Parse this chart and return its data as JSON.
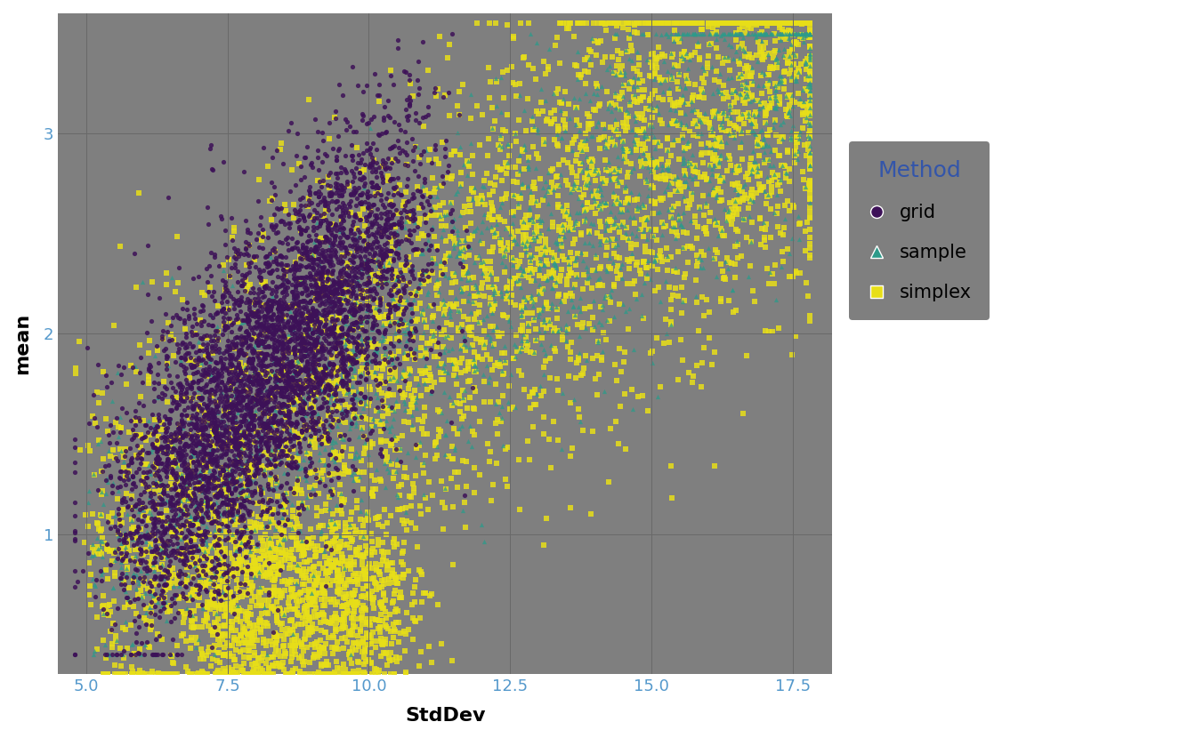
{
  "title": "",
  "xlabel": "StdDev",
  "ylabel": "mean",
  "xlim": [
    4.5,
    18.2
  ],
  "ylim": [
    0.3,
    3.6
  ],
  "xticks": [
    5.0,
    7.5,
    10.0,
    12.5,
    15.0,
    17.5
  ],
  "yticks": [
    1,
    2,
    3
  ],
  "background_color": "#7f7f7f",
  "grid_color": "#696969",
  "grid_linewidth": 0.7,
  "legend_title": "Method",
  "colors": {
    "grid": "#3D1158",
    "sample": "#2D9B8A",
    "simplex": "#E8DF18"
  },
  "markers": {
    "grid": "o",
    "sample": "^",
    "simplex": "s"
  },
  "marker_size": 14,
  "alpha_grid": 0.85,
  "alpha_sample": 0.75,
  "alpha_simplex": 0.85,
  "n_grid": 5000,
  "n_sample": 2000,
  "n_simplex": 5000,
  "seed": 42
}
